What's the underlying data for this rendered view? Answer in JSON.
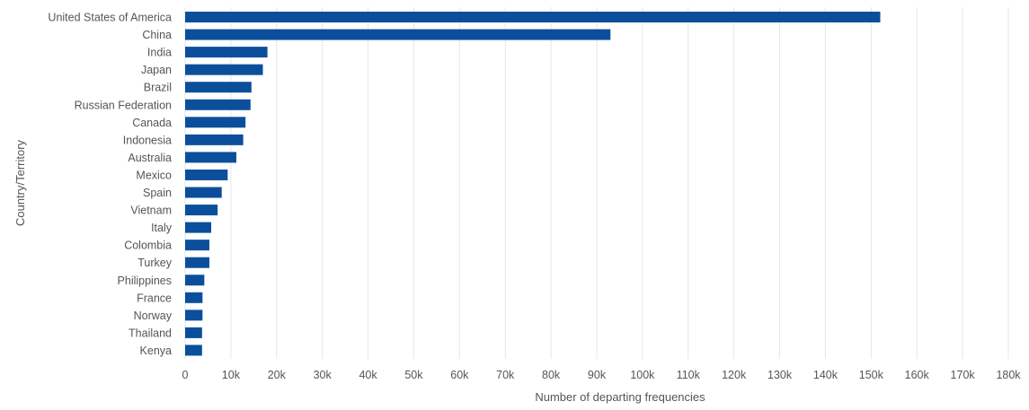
{
  "chart_data": {
    "type": "bar",
    "orientation": "horizontal",
    "title": "",
    "xlabel": "Number of departing frequencies",
    "ylabel": "Country/Territory",
    "xlim": [
      0,
      180000
    ],
    "x_ticks": [
      0,
      10000,
      20000,
      30000,
      40000,
      50000,
      60000,
      70000,
      80000,
      90000,
      100000,
      110000,
      120000,
      130000,
      140000,
      150000,
      160000,
      170000,
      180000
    ],
    "x_tick_labels": [
      "0",
      "10k",
      "20k",
      "30k",
      "40k",
      "50k",
      "60k",
      "70k",
      "80k",
      "90k",
      "100k",
      "110k",
      "120k",
      "130k",
      "140k",
      "150k",
      "160k",
      "170k",
      "180k"
    ],
    "categories": [
      "United States of America",
      "China",
      "India",
      "Japan",
      "Brazil",
      "Russian Federation",
      "Canada",
      "Indonesia",
      "Australia",
      "Mexico",
      "Spain",
      "Vietnam",
      "Italy",
      "Colombia",
      "Turkey",
      "Philippines",
      "France",
      "Norway",
      "Thailand",
      "Kenya"
    ],
    "values": [
      152000,
      93000,
      18000,
      17000,
      14500,
      14300,
      13200,
      12700,
      11200,
      9300,
      8000,
      7100,
      5700,
      5300,
      5300,
      4200,
      3800,
      3800,
      3700,
      3700
    ],
    "grid": true,
    "legend": "none",
    "bar_color": "#0b4f9c"
  }
}
